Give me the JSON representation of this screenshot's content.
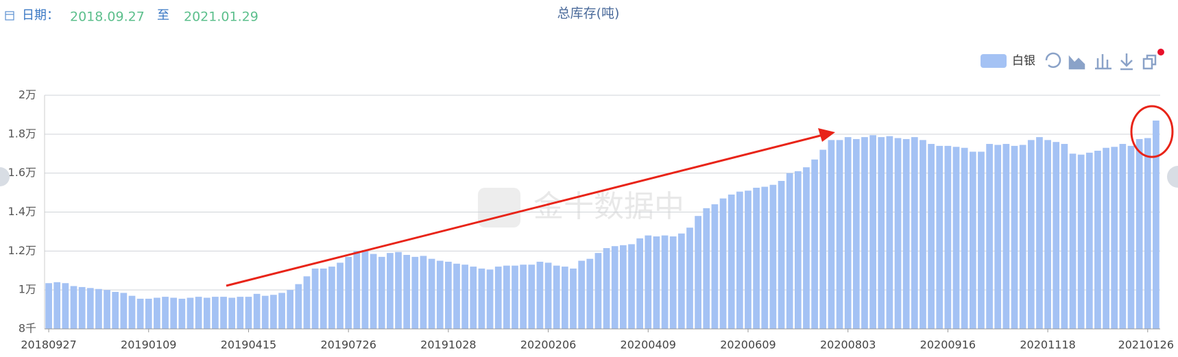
{
  "header": {
    "date_label": "日期：",
    "start_date": "2018.09.27",
    "separator": "至",
    "end_date": "2021.01.29"
  },
  "chart_data": {
    "type": "bar",
    "title": "总库存(吨)",
    "watermark": "金十数据中",
    "categories": [
      "20180927",
      null,
      null,
      null,
      null,
      null,
      null,
      null,
      null,
      null,
      null,
      null,
      "20190109",
      null,
      null,
      null,
      null,
      null,
      null,
      null,
      null,
      null,
      null,
      null,
      "20190415",
      null,
      null,
      null,
      null,
      null,
      null,
      null,
      null,
      null,
      null,
      null,
      "20190726",
      null,
      null,
      null,
      null,
      null,
      null,
      null,
      null,
      null,
      null,
      null,
      "20191028",
      null,
      null,
      null,
      null,
      null,
      null,
      null,
      null,
      null,
      null,
      null,
      "20200206",
      null,
      null,
      null,
      null,
      null,
      null,
      null,
      null,
      null,
      null,
      null,
      "20200409",
      null,
      null,
      null,
      null,
      null,
      null,
      null,
      null,
      null,
      null,
      null,
      "20200609",
      null,
      null,
      null,
      null,
      null,
      null,
      null,
      null,
      null,
      null,
      null,
      "20200803",
      null,
      null,
      null,
      null,
      null,
      null,
      null,
      null,
      null,
      null,
      null,
      "20200916",
      null,
      null,
      null,
      null,
      null,
      null,
      null,
      null,
      null,
      null,
      null,
      "20201118",
      null,
      null,
      null,
      null,
      null,
      null,
      null,
      null,
      null,
      null,
      null,
      "20210126",
      null
    ],
    "series": [
      {
        "name": "白银",
        "color": "#a4c2f4",
        "values": [
          10350,
          10400,
          10350,
          10200,
          10150,
          10100,
          10050,
          10000,
          9900,
          9850,
          9700,
          9550,
          9550,
          9600,
          9650,
          9600,
          9550,
          9600,
          9650,
          9600,
          9650,
          9650,
          9600,
          9650,
          9650,
          9800,
          9700,
          9750,
          9850,
          10000,
          10300,
          10700,
          11100,
          11100,
          11200,
          11400,
          11700,
          12000,
          12050,
          11850,
          11700,
          11900,
          11950,
          11800,
          11700,
          11750,
          11600,
          11500,
          11450,
          11350,
          11300,
          11200,
          11100,
          11050,
          11200,
          11250,
          11250,
          11300,
          11300,
          11450,
          11400,
          11250,
          11200,
          11100,
          11500,
          11600,
          11900,
          12150,
          12250,
          12300,
          12350,
          12650,
          12800,
          12750,
          12800,
          12750,
          12900,
          13200,
          13800,
          14200,
          14400,
          14700,
          14900,
          15050,
          15100,
          15250,
          15300,
          15400,
          15600,
          16000,
          16100,
          16300,
          16700,
          17200,
          17700,
          17700,
          17850,
          17750,
          17850,
          17950,
          17850,
          17900,
          17800,
          17750,
          17850,
          17700,
          17500,
          17400,
          17400,
          17350,
          17300,
          17100,
          17100,
          17500,
          17450,
          17500,
          17400,
          17450,
          17700,
          17850,
          17700,
          17600,
          17500,
          17000,
          16950,
          17050,
          17150,
          17300,
          17350,
          17500,
          17400,
          17750,
          17800,
          18700
        ]
      }
    ],
    "ylim": [
      8000,
      20000
    ],
    "yticks": [
      {
        "value": 8000,
        "label": "8千"
      },
      {
        "value": 10000,
        "label": "1万"
      },
      {
        "value": 12000,
        "label": "1.2万"
      },
      {
        "value": 14000,
        "label": "1.4万"
      },
      {
        "value": 16000,
        "label": "1.6万"
      },
      {
        "value": 18000,
        "label": "1.8万"
      },
      {
        "value": 20000,
        "label": "2万"
      }
    ],
    "grid": true
  }
}
